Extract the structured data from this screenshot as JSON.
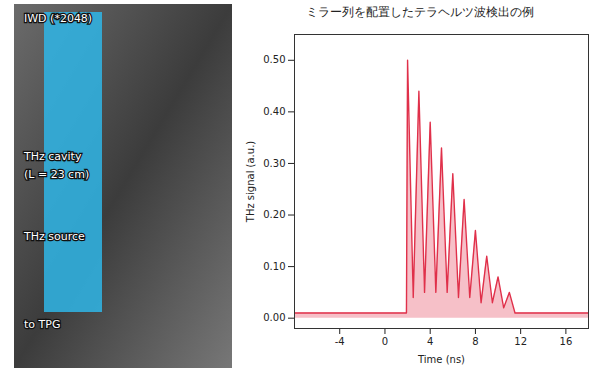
{
  "photo": {
    "labels": [
      "IWD (*2048)",
      "THz cavity",
      "(L = 23 cm)",
      "THz source",
      "to TPG"
    ]
  },
  "chart_data": {
    "type": "line",
    "title": "ミラー列を配置したテラヘルツ波検出の例",
    "x_label": "Time (ns)",
    "y_label": "THz signal (a.u.)",
    "x": [
      -8,
      -6,
      -4,
      -2,
      0,
      1.9,
      2,
      2.5,
      3,
      3.5,
      4,
      4.5,
      5,
      5.5,
      6,
      6.5,
      7,
      7.5,
      8,
      8.5,
      9,
      9.5,
      10,
      10.5,
      11,
      11.5,
      12,
      14,
      16,
      18
    ],
    "series": [
      {
        "name": "THz signal",
        "color": "#e0304a",
        "values": [
          0.01,
          0.01,
          0.01,
          0.01,
          0.01,
          0.01,
          0.5,
          0.04,
          0.44,
          0.05,
          0.38,
          0.05,
          0.33,
          0.05,
          0.28,
          0.04,
          0.23,
          0.04,
          0.17,
          0.03,
          0.12,
          0.03,
          0.08,
          0.02,
          0.05,
          0.01,
          0.01,
          0.01,
          0.01,
          0.01
        ]
      }
    ],
    "xlim": [
      -8,
      18
    ],
    "xticks": [
      -4,
      0,
      4,
      8,
      12,
      16
    ],
    "ylim": [
      -0.02,
      0.55
    ],
    "yticks": [
      {
        "value": 0,
        "label": "0.00"
      },
      {
        "value": 0.1,
        "label": "0.10"
      },
      {
        "value": 0.2,
        "label": "0.20"
      },
      {
        "value": 0.3,
        "label": "0.30"
      },
      {
        "value": 0.4,
        "label": "0.40"
      },
      {
        "value": 0.5,
        "label": "0.50"
      }
    ],
    "grid": false
  }
}
